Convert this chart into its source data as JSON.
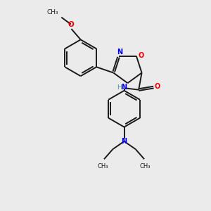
{
  "background_color": "#ebebeb",
  "bond_color": "#1a1a1a",
  "N_color": "#0000ee",
  "O_color": "#ee0000",
  "NH_color": "#4a8a8a",
  "figsize": [
    3.0,
    3.0
  ],
  "dpi": 100,
  "xlim": [
    0,
    10
  ],
  "ylim": [
    0,
    10
  ]
}
